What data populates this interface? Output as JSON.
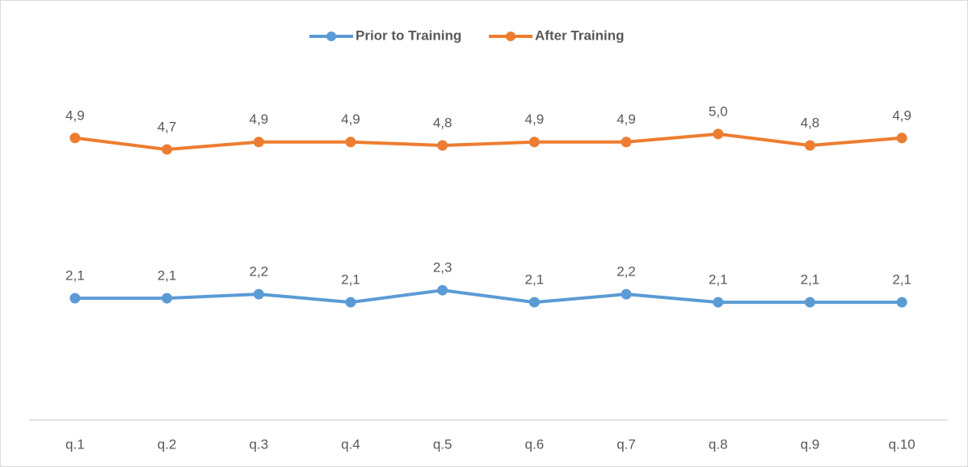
{
  "chart_data": {
    "type": "line",
    "categories": [
      "q.1",
      "q.2",
      "q.3",
      "q.4",
      "q.5",
      "q.6",
      "q.7",
      "q.8",
      "q.9",
      "q.10"
    ],
    "series": [
      {
        "name": "Prior to Training",
        "color": "#5b9bd5",
        "values": [
          2.13,
          2.13,
          2.2,
          2.06,
          2.27,
          2.06,
          2.2,
          2.06,
          2.06,
          2.06
        ],
        "value_labels": [
          "2,1",
          "2,1",
          "2,2",
          "2,1",
          "2,3",
          "2,1",
          "2,2",
          "2,1",
          "2,1",
          "2,1"
        ]
      },
      {
        "name": "After Training",
        "color": "#ed7d31",
        "values": [
          4.93,
          4.73,
          4.86,
          4.86,
          4.8,
          4.86,
          4.86,
          5.0,
          4.8,
          4.93
        ],
        "value_labels": [
          "4,9",
          "4,7",
          "4,9",
          "4,9",
          "4,8",
          "4,9",
          "4,9",
          "5,0",
          "4,8",
          "4,9"
        ]
      }
    ],
    "ylim": [
      0,
      6
    ],
    "legend": "top"
  }
}
